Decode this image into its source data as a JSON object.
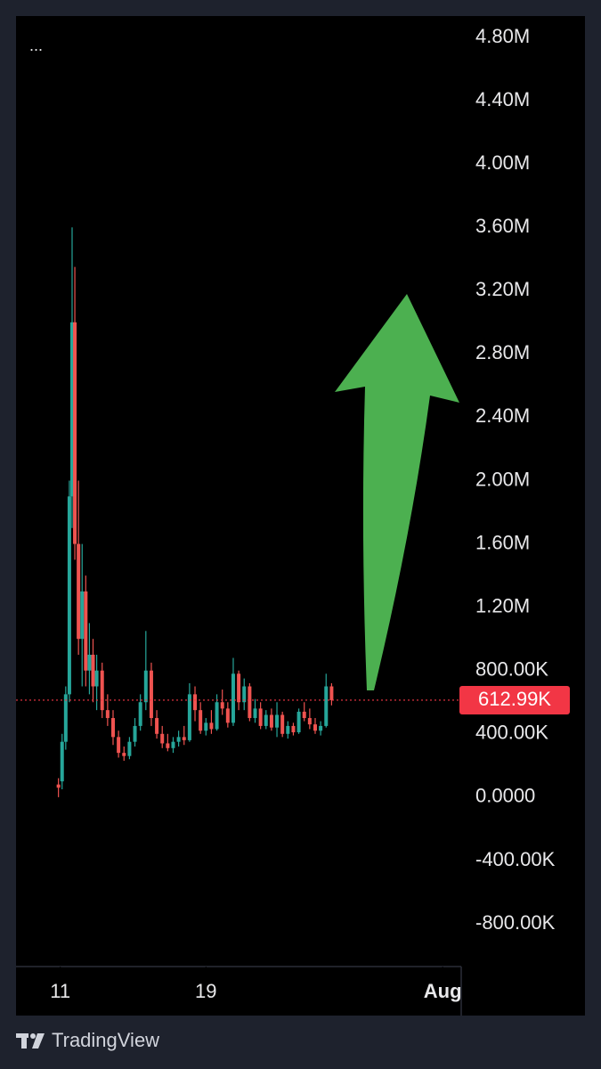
{
  "menu": "...",
  "brand": "TradingView",
  "chart_data": {
    "type": "candlestick",
    "up_color": "#26a69a",
    "down_color": "#ef5350",
    "last_price": 612990,
    "last_price_label": "612.99K",
    "last_price_color": "#f23645",
    "xlim": [
      8.57,
      33.02
    ],
    "xticks": [
      {
        "value": 11,
        "label": "11"
      },
      {
        "value": 19,
        "label": "19"
      },
      {
        "value": 32,
        "label": "Aug"
      }
    ],
    "ylim": [
      -1070000,
      4935000
    ],
    "yticks": [
      {
        "value": 4800000,
        "label": "4.80M"
      },
      {
        "value": 4400000,
        "label": "4.40M"
      },
      {
        "value": 4000000,
        "label": "4.00M"
      },
      {
        "value": 3600000,
        "label": "3.60M"
      },
      {
        "value": 3200000,
        "label": "3.20M"
      },
      {
        "value": 2800000,
        "label": "2.80M"
      },
      {
        "value": 2400000,
        "label": "2.40M"
      },
      {
        "value": 2000000,
        "label": "2.00M"
      },
      {
        "value": 1600000,
        "label": "1.60M"
      },
      {
        "value": 1200000,
        "label": "1.20M"
      },
      {
        "value": 800000,
        "label": "800.00K"
      },
      {
        "value": 400000,
        "label": "400.00K"
      },
      {
        "value": 0,
        "label": "0.0000"
      },
      {
        "value": -400000,
        "label": "-400.00K"
      },
      {
        "value": -800000,
        "label": "-800.00K"
      }
    ],
    "x": [
      10.9,
      11.1,
      11.3,
      11.5,
      11.65,
      11.8,
      12.0,
      12.2,
      12.4,
      12.6,
      12.8,
      13.0,
      13.3,
      13.6,
      13.9,
      14.2,
      14.5,
      14.8,
      15.1,
      15.4,
      15.7,
      16.0,
      16.3,
      16.6,
      16.9,
      17.2,
      17.5,
      17.8,
      18.1,
      18.4,
      18.7,
      19.0,
      19.3,
      19.6,
      19.9,
      20.2,
      20.5,
      20.8,
      21.1,
      21.4,
      21.7,
      22.0,
      22.3,
      22.6,
      22.9,
      23.2,
      23.5,
      23.8,
      24.1,
      24.4,
      24.7,
      25.0,
      25.3,
      25.6,
      25.9
    ],
    "open": [
      80000,
      100000,
      350000,
      650000,
      1900000,
      3000000,
      1600000,
      1000000,
      1300000,
      800000,
      900000,
      700000,
      800000,
      550000,
      500000,
      380000,
      280000,
      260000,
      350000,
      450000,
      600000,
      800000,
      500000,
      400000,
      340000,
      310000,
      350000,
      380000,
      360000,
      650000,
      550000,
      420000,
      470000,
      430000,
      600000,
      560000,
      470000,
      780000,
      600000,
      700000,
      500000,
      560000,
      450000,
      520000,
      440000,
      520000,
      400000,
      450000,
      410000,
      540000,
      500000,
      460000,
      420000,
      450000,
      700000
    ],
    "high": [
      120000,
      400000,
      700000,
      2000000,
      3600000,
      3350000,
      2000000,
      1600000,
      1400000,
      1100000,
      1000000,
      900000,
      850000,
      650000,
      550000,
      420000,
      320000,
      380000,
      500000,
      650000,
      1050000,
      850000,
      550000,
      450000,
      400000,
      380000,
      420000,
      450000,
      720000,
      700000,
      600000,
      500000,
      550000,
      650000,
      680000,
      600000,
      880000,
      800000,
      750000,
      720000,
      620000,
      600000,
      550000,
      560000,
      600000,
      540000,
      480000,
      470000,
      560000,
      600000,
      560000,
      500000,
      480000,
      780000,
      720000
    ],
    "low": [
      0,
      50000,
      300000,
      600000,
      1700000,
      1500000,
      900000,
      700000,
      700000,
      650000,
      600000,
      550000,
      500000,
      450000,
      330000,
      250000,
      230000,
      240000,
      320000,
      420000,
      550000,
      450000,
      370000,
      310000,
      290000,
      280000,
      320000,
      330000,
      350000,
      480000,
      400000,
      390000,
      400000,
      420000,
      520000,
      440000,
      450000,
      550000,
      550000,
      480000,
      470000,
      430000,
      430000,
      420000,
      380000,
      380000,
      370000,
      390000,
      400000,
      480000,
      430000,
      400000,
      390000,
      440000,
      580000
    ],
    "close": [
      60000,
      350000,
      650000,
      1900000,
      3000000,
      1600000,
      1000000,
      1300000,
      800000,
      900000,
      700000,
      800000,
      550000,
      500000,
      380000,
      280000,
      260000,
      350000,
      450000,
      600000,
      800000,
      500000,
      400000,
      340000,
      310000,
      350000,
      380000,
      360000,
      650000,
      550000,
      420000,
      470000,
      430000,
      600000,
      560000,
      470000,
      780000,
      600000,
      700000,
      500000,
      560000,
      450000,
      520000,
      440000,
      520000,
      400000,
      450000,
      410000,
      540000,
      500000,
      460000,
      420000,
      450000,
      700000,
      612990
    ]
  }
}
